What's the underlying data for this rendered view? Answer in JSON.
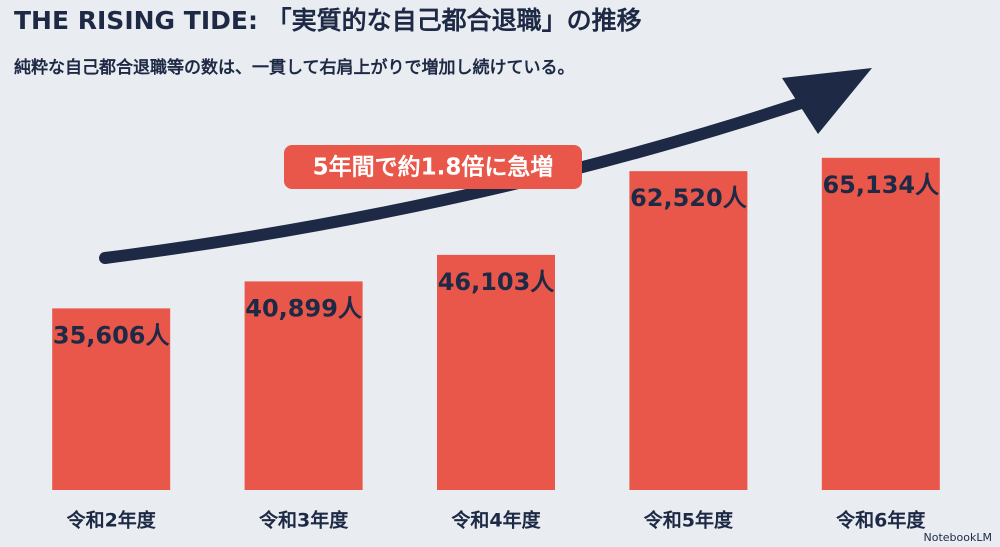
{
  "chart_data": {
    "type": "bar",
    "title": "THE RISING TIDE: 「実質的な自己都合退職」の推移",
    "subtitle": "純粋な自己都合退職等の数は、一貫して右肩上がりで増加し続けている。",
    "annotation": "5年間で約1.8倍に急増",
    "watermark": "NotebookLM",
    "categories": [
      "令和2年度",
      "令和3年度",
      "令和4年度",
      "令和5年度",
      "令和6年度"
    ],
    "values": [
      35606,
      40899,
      46103,
      62520,
      65134
    ],
    "value_labels": [
      "35,606人",
      "40,899人",
      "46,103人",
      "62,520人",
      "65,134人"
    ],
    "color": "#e8574a",
    "ylim": [
      0,
      70000
    ]
  }
}
